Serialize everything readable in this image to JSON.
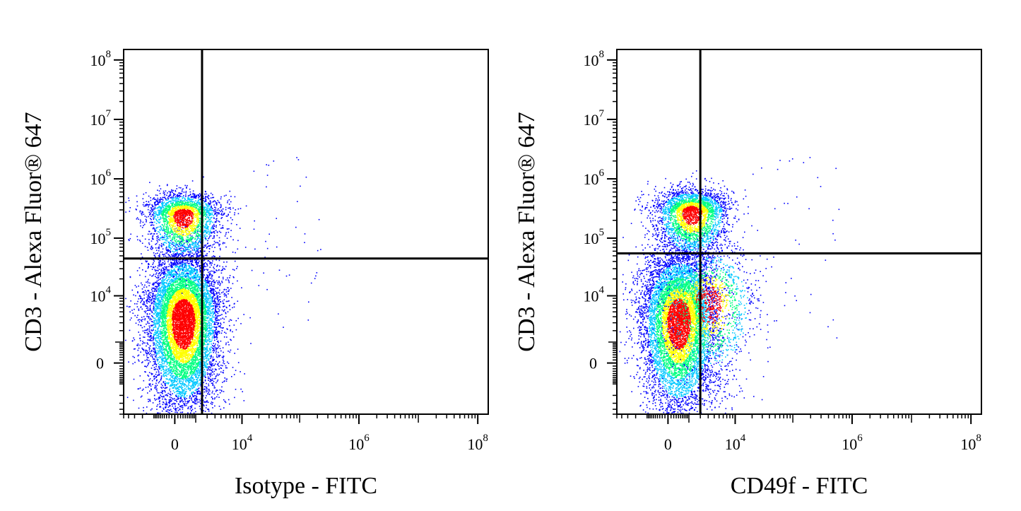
{
  "chart_data": [
    {
      "type": "scatter",
      "subtype": "flow-cytometry density dot plot",
      "xlabel": "Isotype - FITC",
      "ylabel": "CD3 - Alexa Fluor® 647",
      "x_ticks": [
        {
          "value": 0,
          "base": "0",
          "exp": ""
        },
        {
          "value": 10000,
          "base": "10",
          "exp": "4"
        },
        {
          "value": 1000000,
          "base": "10",
          "exp": "6"
        },
        {
          "value": 100000000,
          "base": "10",
          "exp": "8"
        }
      ],
      "y_ticks": [
        {
          "value": 0,
          "base": "0",
          "exp": ""
        },
        {
          "value": 10000,
          "base": "10",
          "exp": "4"
        },
        {
          "value": 100000,
          "base": "10",
          "exp": "5"
        },
        {
          "value": 1000000,
          "base": "10",
          "exp": "6"
        },
        {
          "value": 10000000,
          "base": "10",
          "exp": "7"
        },
        {
          "value": 100000000,
          "base": "10",
          "exp": "8"
        }
      ],
      "x_scale": "biexponential",
      "y_scale": "biexponential",
      "x_range": [
        -5000,
        150000000
      ],
      "y_range": [
        -5000,
        150000000
      ],
      "quadrant_gate": {
        "x": 1500,
        "y": 45000
      },
      "populations": [
        {
          "name": "",
          "center_x": 300,
          "center_y": 3500,
          "count": 9000
        },
        {
          "name": "",
          "center_x": 300,
          "center_y": 250000,
          "count": 2600
        }
      ],
      "color_scale": [
        "#0000ff",
        "#00c8ff",
        "#00ff80",
        "#ffff00",
        "#ff0000"
      ]
    },
    {
      "type": "scatter",
      "subtype": "flow-cytometry density dot plot",
      "xlabel": "CD49f - FITC",
      "ylabel": "CD3 - Alexa Fluor® 647",
      "x_ticks": [
        {
          "value": 0,
          "base": "0",
          "exp": ""
        },
        {
          "value": 10000,
          "base": "10",
          "exp": "4"
        },
        {
          "value": 1000000,
          "base": "10",
          "exp": "6"
        },
        {
          "value": 100000000,
          "base": "10",
          "exp": "8"
        }
      ],
      "y_ticks": [
        {
          "value": 0,
          "base": "0",
          "exp": ""
        },
        {
          "value": 10000,
          "base": "10",
          "exp": "4"
        },
        {
          "value": 100000,
          "base": "10",
          "exp": "5"
        },
        {
          "value": 1000000,
          "base": "10",
          "exp": "6"
        },
        {
          "value": 10000000,
          "base": "10",
          "exp": "7"
        },
        {
          "value": 100000000,
          "base": "10",
          "exp": "8"
        }
      ],
      "x_scale": "biexponential",
      "y_scale": "biexponential",
      "x_range": [
        -5000,
        150000000
      ],
      "y_range": [
        -5000,
        150000000
      ],
      "quadrant_gate": {
        "x": 2000,
        "y": 55000
      },
      "populations": [
        {
          "name": "",
          "center_x": 400,
          "center_y": 3500,
          "count": 8000
        },
        {
          "name": "",
          "center_x": 1200,
          "center_y": 280000,
          "count": 3000
        },
        {
          "name": "",
          "center_x": 3000,
          "center_y": 8000,
          "count": 1500
        }
      ],
      "color_scale": [
        "#0000ff",
        "#00c8ff",
        "#00ff80",
        "#ffff00",
        "#ff0000"
      ]
    }
  ]
}
